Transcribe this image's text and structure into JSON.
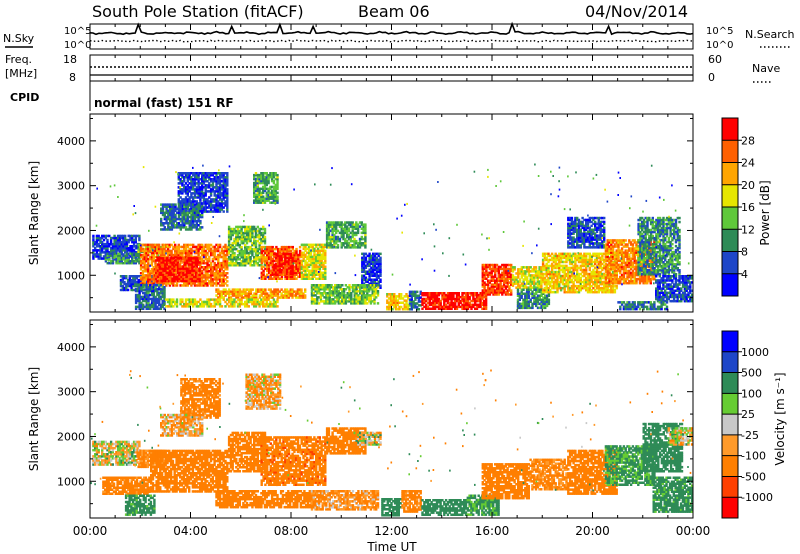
{
  "header": {
    "station": "South Pole Station (fitACF)",
    "beam": "Beam 06",
    "date": "04/Nov/2014"
  },
  "noise_panel": {
    "left_label": "N.Sky",
    "right_label": "N.Search",
    "top_tick": "10^5",
    "bottom_tick": "10^0"
  },
  "freq_panel": {
    "label_line1": "Freq.",
    "label_line2": "[MHz]",
    "tick_high": "18",
    "tick_low": "8",
    "right_label": "Nave",
    "right_tick_high": "60",
    "right_tick_low": "0"
  },
  "cpid": {
    "label": "CPID",
    "program": "normal (fast) 151 RF"
  },
  "colors": {
    "frame": "#000000",
    "power_scale": [
      "#0000ff",
      "#1e46c8",
      "#2e8b57",
      "#5fc83a",
      "#e6e600",
      "#ffa500",
      "#ff6000",
      "#ff0000"
    ],
    "velocity_scale": [
      "#ff0000",
      "#ff4000",
      "#ff7f00",
      "#ff9a2a",
      "#c8c8c8",
      "#66cc33",
      "#2e8b57",
      "#1e46c8",
      "#0000ff"
    ]
  },
  "chart_data": [
    {
      "type": "heatmap",
      "name": "power",
      "ylabel": "Slant Range [km]",
      "y_ticks": [
        "1000",
        "2000",
        "3000",
        "4000"
      ],
      "y_tick_values": [
        1000,
        2000,
        3000,
        4000
      ],
      "ylim": [
        180,
        4600
      ],
      "x_ticks": [
        "00:00",
        "04:00",
        "08:00",
        "12:00",
        "16:00",
        "20:00",
        "00:00"
      ],
      "x_tick_values": [
        0,
        4,
        8,
        12,
        16,
        20,
        24
      ],
      "xlim": [
        0,
        24
      ],
      "colorbar": {
        "title": "Power [dB]",
        "tick_labels": [
          "4",
          "8",
          "12",
          "16",
          "20",
          "24",
          "28"
        ],
        "range": [
          0,
          32
        ]
      },
      "regions": [
        {
          "t0": 0.1,
          "t1": 2.0,
          "r0": 1350,
          "r1": 1900,
          "value": 5
        },
        {
          "t0": 0.6,
          "t1": 2.0,
          "r0": 1250,
          "r1": 1500,
          "value": 10
        },
        {
          "t0": 1.9,
          "t1": 3.0,
          "r0": 1500,
          "r1": 1700,
          "value": 12
        },
        {
          "t0": 1.2,
          "t1": 2.6,
          "r0": 650,
          "r1": 1000,
          "value": 6
        },
        {
          "t0": 2.0,
          "t1": 5.5,
          "r0": 750,
          "r1": 1700,
          "value": 25
        },
        {
          "t0": 2.6,
          "t1": 4.4,
          "r0": 850,
          "r1": 1400,
          "value": 30
        },
        {
          "t0": 3.5,
          "t1": 5.5,
          "r0": 2400,
          "r1": 3300,
          "value": 5
        },
        {
          "t0": 2.8,
          "t1": 4.5,
          "r0": 2000,
          "r1": 2600,
          "value": 8
        },
        {
          "t0": 1.8,
          "t1": 3.0,
          "r0": 230,
          "r1": 800,
          "value": 8
        },
        {
          "t0": 5.5,
          "t1": 7.0,
          "r0": 1200,
          "r1": 2100,
          "value": 14
        },
        {
          "t0": 6.8,
          "t1": 8.4,
          "r0": 900,
          "r1": 1650,
          "value": 26
        },
        {
          "t0": 7.3,
          "t1": 8.1,
          "r0": 1000,
          "r1": 1500,
          "value": 30
        },
        {
          "t0": 6.5,
          "t1": 7.5,
          "r0": 2600,
          "r1": 3300,
          "value": 12
        },
        {
          "t0": 5.0,
          "t1": 8.6,
          "r0": 480,
          "r1": 700,
          "value": 22
        },
        {
          "t0": 3.0,
          "t1": 7.5,
          "r0": 280,
          "r1": 480,
          "value": 18
        },
        {
          "t0": 8.4,
          "t1": 9.4,
          "r0": 900,
          "r1": 1700,
          "value": 18
        },
        {
          "t0": 9.4,
          "t1": 11.0,
          "r0": 1600,
          "r1": 2200,
          "value": 12
        },
        {
          "t0": 10.8,
          "t1": 11.6,
          "r0": 700,
          "r1": 1500,
          "value": 5
        },
        {
          "t0": 8.8,
          "t1": 11.5,
          "r0": 350,
          "r1": 800,
          "value": 14
        },
        {
          "t0": 11.8,
          "t1": 12.7,
          "r0": 220,
          "r1": 600,
          "value": 20
        },
        {
          "t0": 12.7,
          "t1": 13.2,
          "r0": 220,
          "r1": 650,
          "value": 8
        },
        {
          "t0": 13.2,
          "t1": 15.8,
          "r0": 230,
          "r1": 620,
          "value": 30
        },
        {
          "t0": 15.6,
          "t1": 16.8,
          "r0": 550,
          "r1": 1250,
          "value": 28
        },
        {
          "t0": 16.8,
          "t1": 18.0,
          "r0": 700,
          "r1": 1200,
          "value": 18
        },
        {
          "t0": 17.0,
          "t1": 18.3,
          "r0": 250,
          "r1": 700,
          "value": 10
        },
        {
          "t0": 18.0,
          "t1": 21.0,
          "r0": 600,
          "r1": 1500,
          "value": 20
        },
        {
          "t0": 19.0,
          "t1": 20.5,
          "r0": 1600,
          "r1": 2300,
          "value": 6
        },
        {
          "t0": 20.5,
          "t1": 22.5,
          "r0": 800,
          "r1": 1800,
          "value": 24
        },
        {
          "t0": 21.8,
          "t1": 23.5,
          "r0": 1000,
          "r1": 2300,
          "value": 10
        },
        {
          "t0": 22.5,
          "t1": 24.0,
          "r0": 400,
          "r1": 1000,
          "value": 6
        },
        {
          "t0": 21.0,
          "t1": 23.0,
          "r0": 220,
          "r1": 420,
          "value": 8
        }
      ]
    },
    {
      "type": "heatmap",
      "name": "velocity",
      "ylabel": "Slant Range [km]",
      "y_ticks": [
        "1000",
        "2000",
        "3000",
        "4000"
      ],
      "y_tick_values": [
        1000,
        2000,
        3000,
        4000
      ],
      "ylim": [
        180,
        4600
      ],
      "x_ticks": [
        "00:00",
        "04:00",
        "08:00",
        "12:00",
        "16:00",
        "20:00",
        "00:00"
      ],
      "x_tick_values": [
        0,
        4,
        8,
        12,
        16,
        20,
        24
      ],
      "xlim": [
        0,
        24
      ],
      "xlabel": "Time UT",
      "colorbar": {
        "title": "Velocity [m s⁻¹]",
        "tick_labels": [
          "-1000",
          "-500",
          "-100",
          "-25",
          "25",
          "100",
          "500",
          "1000"
        ]
      },
      "regions": [
        {
          "t0": 0.1,
          "t1": 2.0,
          "r0": 1350,
          "r1": 1900,
          "value": 0
        },
        {
          "t0": 1.9,
          "t1": 3.0,
          "r0": 1300,
          "r1": 1700,
          "value": -150
        },
        {
          "t0": 0.5,
          "t1": 2.4,
          "r0": 700,
          "r1": 1100,
          "value": -200
        },
        {
          "t0": 1.4,
          "t1": 2.6,
          "r0": 230,
          "r1": 700,
          "value": 200
        },
        {
          "t0": 2.4,
          "t1": 5.5,
          "r0": 750,
          "r1": 1700,
          "value": -350
        },
        {
          "t0": 3.6,
          "t1": 5.2,
          "r0": 2400,
          "r1": 3300,
          "value": -200
        },
        {
          "t0": 2.8,
          "t1": 4.5,
          "r0": 2000,
          "r1": 2500,
          "value": -80
        },
        {
          "t0": 5.5,
          "t1": 7.0,
          "r0": 1200,
          "r1": 2100,
          "value": -250
        },
        {
          "t0": 6.8,
          "t1": 9.4,
          "r0": 900,
          "r1": 2000,
          "value": -400
        },
        {
          "t0": 6.2,
          "t1": 7.6,
          "r0": 2600,
          "r1": 3400,
          "value": -80
        },
        {
          "t0": 5.0,
          "t1": 9.0,
          "r0": 400,
          "r1": 800,
          "value": -300
        },
        {
          "t0": 9.4,
          "t1": 11.0,
          "r0": 1600,
          "r1": 2200,
          "value": -300
        },
        {
          "t0": 10.5,
          "t1": 11.6,
          "r0": 1800,
          "r1": 2100,
          "value": 0
        },
        {
          "t0": 8.8,
          "t1": 11.5,
          "r0": 350,
          "r1": 800,
          "value": -120
        },
        {
          "t0": 11.6,
          "t1": 12.4,
          "r0": 220,
          "r1": 620,
          "value": 300
        },
        {
          "t0": 12.4,
          "t1": 13.2,
          "r0": 300,
          "r1": 800,
          "value": -200
        },
        {
          "t0": 13.2,
          "t1": 15.0,
          "r0": 230,
          "r1": 600,
          "value": 300
        },
        {
          "t0": 15.0,
          "t1": 16.3,
          "r0": 230,
          "r1": 700,
          "value": 150
        },
        {
          "t0": 15.6,
          "t1": 17.5,
          "r0": 600,
          "r1": 1400,
          "value": -300
        },
        {
          "t0": 17.5,
          "t1": 19.0,
          "r0": 800,
          "r1": 1500,
          "value": -150
        },
        {
          "t0": 19.0,
          "t1": 21.0,
          "r0": 700,
          "r1": 1700,
          "value": -250
        },
        {
          "t0": 20.5,
          "t1": 22.5,
          "r0": 900,
          "r1": 1800,
          "value": 150
        },
        {
          "t0": 22.0,
          "t1": 23.6,
          "r0": 1200,
          "r1": 2300,
          "value": 250
        },
        {
          "t0": 23.0,
          "t1": 24.0,
          "r0": 1800,
          "r1": 2200,
          "value": 0
        },
        {
          "t0": 22.4,
          "t1": 24.0,
          "r0": 300,
          "r1": 1100,
          "value": 200
        }
      ]
    }
  ]
}
